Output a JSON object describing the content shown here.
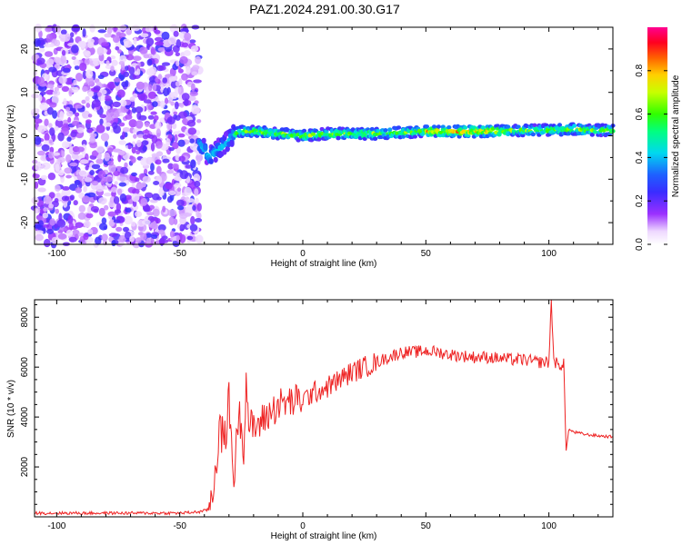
{
  "figure": {
    "title": "PAZ1.2024.291.00.30.G17"
  },
  "colors": {
    "snr_line": "#ee2222",
    "axis": "#000000",
    "background": "#ffffff"
  },
  "chart_data": [
    {
      "type": "heatmap",
      "title": "PAZ1.2024.291.00.30.G17",
      "xlabel": "Height of straight line (km)",
      "ylabel": "Frequency (Hz)",
      "xlim": [
        -109,
        126
      ],
      "ylim": [
        -25,
        25
      ],
      "xticks": [
        -100,
        -50,
        0,
        50,
        100
      ],
      "yticks": [
        -20,
        -10,
        0,
        10,
        20
      ],
      "grid": false,
      "colorbar": {
        "label": "Normalized spectral amplitude",
        "range": [
          0,
          1
        ],
        "ticks": [
          0.0,
          0.2,
          0.4,
          0.6,
          0.8
        ],
        "tick_labels": [
          "0.0",
          "0.2",
          "0.4",
          "0.6",
          "0.8"
        ],
        "colormap": "rainbow (white-violet-blue-cyan-green-yellow-red-magenta)"
      },
      "regions": [
        {
          "x_range": [
            -109,
            -42
          ],
          "frequency_range": [
            -25,
            25
          ],
          "description": "noise",
          "amplitude_range": [
            0.05,
            0.25
          ]
        },
        {
          "x_range": [
            -42,
            -28
          ],
          "frequency_center": [
            -3,
            -5
          ],
          "amplitude_range": [
            0.3,
            0.5
          ]
        },
        {
          "x_range": [
            -28,
            126
          ],
          "frequency_center": [
            0.5,
            1.5
          ],
          "amplitude_range": [
            0.4,
            0.9
          ]
        }
      ],
      "ridge": {
        "x": [
          -42,
          -40,
          -38,
          -36,
          -34,
          -32,
          -30,
          -28,
          -25,
          -20,
          -10,
          0,
          10,
          30,
          50,
          70,
          90,
          110,
          126
        ],
        "frequency": [
          -2,
          -3,
          -5,
          -4,
          -3,
          -2,
          -1,
          0.5,
          1,
          1,
          0.5,
          0,
          0.5,
          0.5,
          1,
          1,
          1.2,
          1.5,
          1.2
        ]
      }
    },
    {
      "type": "line",
      "title": "",
      "xlabel": "Height of straight line (km)",
      "ylabel": "SNR (10 * v/v)",
      "xlim": [
        -109,
        126
      ],
      "ylim": [
        0,
        8700
      ],
      "xticks": [
        -100,
        -50,
        0,
        50,
        100
      ],
      "yticks": [
        2000,
        4000,
        6000,
        8000
      ],
      "grid": false,
      "series": [
        {
          "color": "#ee2222",
          "x": [
            -109,
            -90,
            -70,
            -50,
            -42,
            -38,
            -36,
            -34,
            -32,
            -30,
            -28,
            -26,
            -24,
            -23,
            -22,
            -20,
            -15,
            -10,
            -5,
            0,
            5,
            10,
            15,
            20,
            25,
            30,
            35,
            40,
            45,
            50,
            55,
            60,
            65,
            70,
            75,
            80,
            85,
            90,
            95,
            100,
            101,
            102,
            104,
            106,
            107,
            108,
            110,
            115,
            120,
            126
          ],
          "y": [
            150,
            150,
            150,
            150,
            200,
            300,
            1500,
            3500,
            3000,
            4600,
            1500,
            4300,
            2800,
            5500,
            3800,
            3500,
            4000,
            4500,
            4600,
            4700,
            5000,
            5200,
            5500,
            5800,
            6000,
            6200,
            6400,
            6600,
            6600,
            6650,
            6600,
            6500,
            6450,
            6400,
            6400,
            6350,
            6300,
            6300,
            6200,
            6200,
            8700,
            6300,
            6000,
            6200,
            2600,
            3500,
            3400,
            3300,
            3250,
            3200
          ]
        }
      ]
    }
  ]
}
